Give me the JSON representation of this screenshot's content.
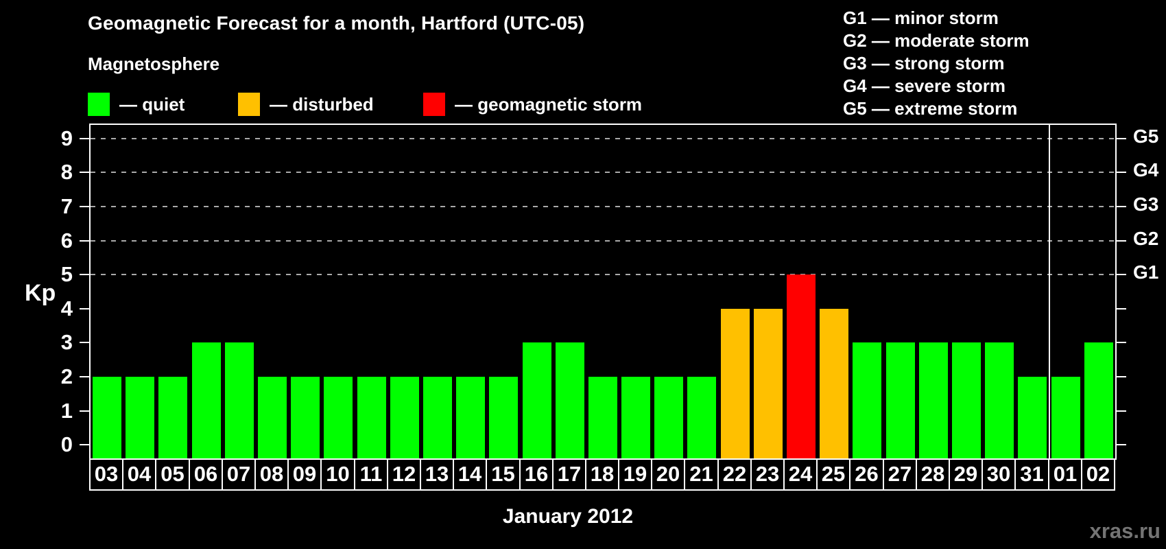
{
  "title": "Geomagnetic Forecast for a month, Hartford (UTC-05)",
  "legend": {
    "title": "Magnetosphere",
    "items": [
      {
        "name": "quiet",
        "label": "— quiet",
        "color": "#00ff00"
      },
      {
        "name": "disturbed",
        "label": "— disturbed",
        "color": "#ffc000"
      },
      {
        "name": "storm",
        "label": "— geomagnetic storm",
        "color": "#ff0000"
      }
    ]
  },
  "g_scale_legend": [
    "G1 — minor storm",
    "G2 — moderate storm",
    "G3 — strong storm",
    "G4 — severe storm",
    "G5 — extreme storm"
  ],
  "watermark": "xras.ru",
  "chart_data": {
    "type": "bar",
    "title": "Geomagnetic Forecast for a month, Hartford (UTC-05)",
    "xlabel": "January 2012",
    "ylabel": "Kp",
    "ylim": [
      -0.4,
      9.4
    ],
    "y_ticks": [
      0,
      1,
      2,
      3,
      4,
      5,
      6,
      7,
      8,
      9
    ],
    "gridlines_at": [
      5,
      6,
      7,
      8,
      9
    ],
    "grid": "dashed horizontal lines at Kp 5-9",
    "right_axis_labels": [
      {
        "value": 5,
        "label": "G1"
      },
      {
        "value": 6,
        "label": "G2"
      },
      {
        "value": 7,
        "label": "G3"
      },
      {
        "value": 8,
        "label": "G4"
      },
      {
        "value": 9,
        "label": "G5"
      }
    ],
    "categories": [
      "03",
      "04",
      "05",
      "06",
      "07",
      "08",
      "09",
      "10",
      "11",
      "12",
      "13",
      "14",
      "15",
      "16",
      "17",
      "18",
      "19",
      "20",
      "21",
      "22",
      "23",
      "24",
      "25",
      "26",
      "27",
      "28",
      "29",
      "30",
      "31",
      "01",
      "02"
    ],
    "values": [
      2,
      2,
      2,
      3,
      3,
      2,
      2,
      2,
      2,
      2,
      2,
      2,
      2,
      3,
      3,
      2,
      2,
      2,
      2,
      4,
      4,
      5,
      4,
      3,
      3,
      3,
      3,
      3,
      2,
      2,
      3
    ],
    "statuses": [
      "quiet",
      "quiet",
      "quiet",
      "quiet",
      "quiet",
      "quiet",
      "quiet",
      "quiet",
      "quiet",
      "quiet",
      "quiet",
      "quiet",
      "quiet",
      "quiet",
      "quiet",
      "quiet",
      "quiet",
      "quiet",
      "quiet",
      "disturbed",
      "disturbed",
      "storm",
      "disturbed",
      "quiet",
      "quiet",
      "quiet",
      "quiet",
      "quiet",
      "quiet",
      "quiet",
      "quiet"
    ],
    "colors": {
      "quiet": "#00ff00",
      "disturbed": "#ffc000",
      "storm": "#ff0000"
    },
    "month_boundary_after_index": 28
  }
}
